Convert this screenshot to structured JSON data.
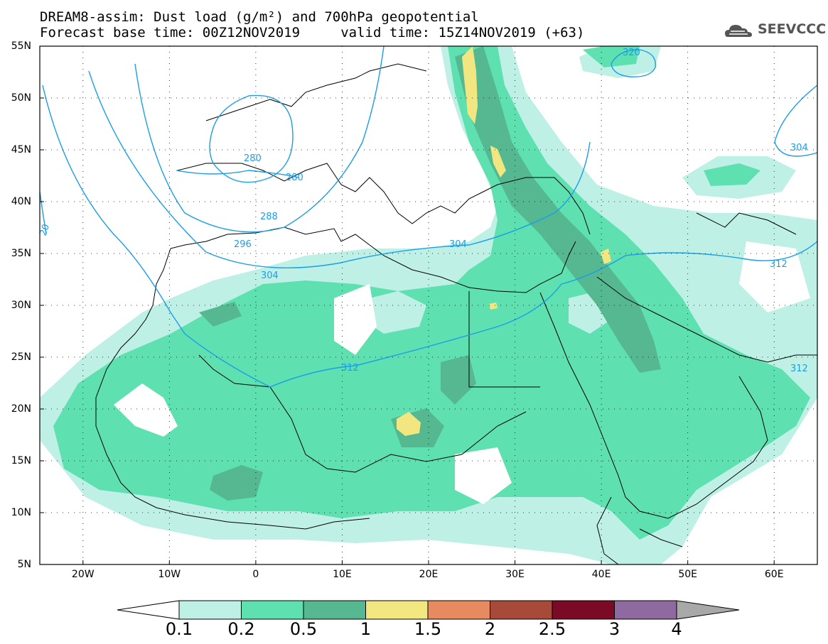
{
  "title": {
    "line1": "DREAM8-assim: Dust load (g/m²) and 700hPa geopotential",
    "line2": "Forecast base time: 00Z12NOV2019     valid time: 15Z14NOV2019 (+63)"
  },
  "logo": {
    "text": "SEEVCCC",
    "icon": "cloud-logo-icon"
  },
  "map": {
    "lat_labels": [
      "55N",
      "50N",
      "45N",
      "40N",
      "35N",
      "30N",
      "25N",
      "20N",
      "15N",
      "10N",
      "5N"
    ],
    "lat_values": [
      55,
      50,
      45,
      40,
      35,
      30,
      25,
      20,
      15,
      10,
      5
    ],
    "lon_labels": [
      "20W",
      "10W",
      "0",
      "10E",
      "20E",
      "30E",
      "40E",
      "50E",
      "60E"
    ],
    "lon_values": [
      -20,
      -10,
      0,
      10,
      20,
      30,
      40,
      50,
      60
    ],
    "lat_range": [
      5,
      55
    ],
    "lon_range": [
      -25,
      65
    ],
    "contour_labels": [
      "280",
      "280",
      "288",
      "296",
      "304",
      "304",
      "312",
      "304",
      "320",
      "312",
      "312",
      "20"
    ]
  },
  "colorbar": {
    "levels": [
      "0.1",
      "0.2",
      "0.5",
      "1",
      "1.5",
      "2",
      "2.5",
      "3",
      "4"
    ],
    "colors": [
      "#bff0e6",
      "#5ee0b0",
      "#55b890",
      "#f2e680",
      "#e88a60",
      "#a84a3a",
      "#7a0a26",
      "#8e6aa0",
      "#a8a8a8"
    ],
    "under_color": "#ffffff",
    "over_color": "#a8a8a8"
  },
  "colors": {
    "contour": "#1a9ee8",
    "coast": "#000000"
  }
}
